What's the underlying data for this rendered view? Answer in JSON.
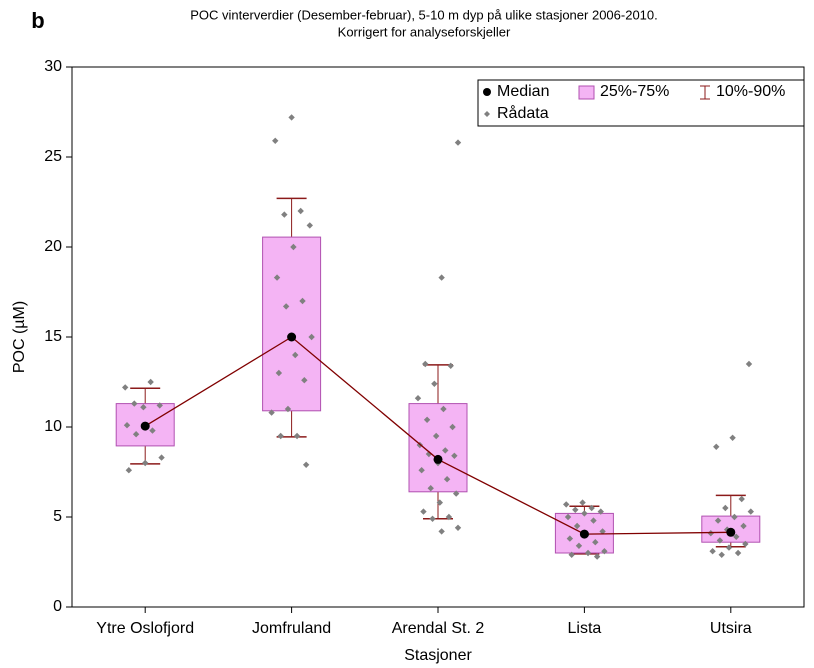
{
  "chart_data": {
    "type": "box",
    "panel_label": "b",
    "title": "POC vinterverdier (Desember-februar), 5-10 m dyp på ulike stasjoner 2006-2010.",
    "subtitle": "Korrigert for analyseforskjeller",
    "x_label": "Stasjoner",
    "y_label": "POC (µM)",
    "categories": [
      "Ytre Oslofjord",
      "Jomfruland",
      "Arendal St. 2",
      "Lista",
      "Utsira"
    ],
    "ylim": [
      0,
      30
    ],
    "yticks": [
      0,
      5,
      10,
      15,
      20,
      25,
      30
    ],
    "median": {
      "name": "Median",
      "color": "#800000",
      "values": [
        10.05,
        15.0,
        8.2,
        4.05,
        4.15
      ]
    },
    "box": {
      "name": "25%-75%",
      "color": "#f4b4f4",
      "edge": "#b050b0",
      "q1": [
        8.95,
        10.9,
        6.4,
        3.0,
        3.6
      ],
      "q3": [
        11.3,
        20.55,
        11.3,
        5.2,
        5.05
      ]
    },
    "whisker": {
      "name": "10%-90%",
      "color": "#8b1a1a",
      "low": [
        7.95,
        9.45,
        4.9,
        2.95,
        3.35
      ],
      "high": [
        12.15,
        22.7,
        13.45,
        5.6,
        6.2
      ]
    },
    "raw": {
      "name": "Rådata",
      "color": "#808080",
      "values": [
        [
          12.2,
          12.5,
          11.3,
          11.2,
          11.1,
          10.1,
          9.8,
          9.6,
          8.3,
          8.0,
          7.6
        ],
        [
          27.2,
          25.9,
          22.0,
          21.8,
          21.2,
          20.0,
          18.3,
          17.0,
          16.7,
          15.0,
          14.0,
          13.0,
          12.6,
          11.0,
          10.8,
          9.5,
          9.5,
          7.9
        ],
        [
          25.8,
          18.3,
          13.5,
          13.4,
          12.4,
          11.6,
          11.0,
          10.4,
          10.0,
          9.5,
          9.0,
          8.7,
          8.5,
          8.4,
          8.0,
          7.6,
          7.1,
          6.6,
          6.3,
          5.8,
          5.3,
          5.0,
          4.9,
          4.4,
          4.2
        ],
        [
          5.8,
          5.7,
          5.5,
          5.4,
          5.3,
          5.2,
          5.0,
          4.8,
          4.5,
          4.2,
          4.0,
          3.8,
          3.6,
          3.4,
          3.1,
          3.0,
          2.9,
          2.8
        ],
        [
          13.5,
          9.4,
          8.9,
          6.0,
          5.5,
          5.3,
          5.0,
          4.8,
          4.5,
          4.3,
          4.1,
          3.9,
          3.7,
          3.5,
          3.3,
          3.1,
          3.0,
          2.9
        ]
      ]
    }
  }
}
